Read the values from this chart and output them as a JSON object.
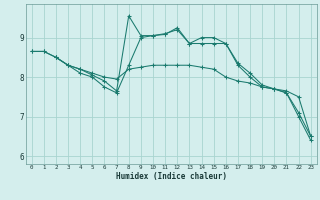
{
  "xlabel": "Humidex (Indice chaleur)",
  "bg_color": "#d4eeed",
  "grid_color": "#a8d4d0",
  "line_color": "#1a7a6e",
  "xlim": [
    -0.5,
    23.5
  ],
  "ylim": [
    5.8,
    9.85
  ],
  "yticks": [
    6,
    7,
    8,
    9
  ],
  "xticks": [
    0,
    1,
    2,
    3,
    4,
    5,
    6,
    7,
    8,
    9,
    10,
    11,
    12,
    13,
    14,
    15,
    16,
    17,
    18,
    19,
    20,
    21,
    22,
    23
  ],
  "series": [
    {
      "x": [
        0,
        1,
        2,
        3,
        4,
        5,
        6,
        7,
        8,
        9,
        10,
        11,
        12,
        13,
        14,
        15,
        16,
        17,
        18,
        19,
        20,
        21,
        22,
        23
      ],
      "y": [
        8.65,
        8.65,
        8.5,
        8.3,
        8.2,
        8.1,
        8.0,
        7.95,
        8.2,
        8.25,
        8.3,
        8.3,
        8.3,
        8.3,
        8.25,
        8.2,
        8.0,
        7.9,
        7.85,
        7.75,
        7.7,
        7.65,
        7.5,
        6.5
      ]
    },
    {
      "x": [
        0,
        1,
        2,
        3,
        4,
        5,
        6,
        7,
        8,
        9,
        10,
        11,
        12,
        13,
        14,
        15,
        16,
        17,
        18,
        19,
        20,
        21,
        22,
        23
      ],
      "y": [
        8.65,
        8.65,
        8.5,
        8.3,
        8.1,
        8.0,
        7.75,
        7.6,
        8.3,
        9.0,
        9.05,
        9.1,
        9.2,
        8.85,
        9.0,
        9.0,
        8.85,
        8.35,
        8.1,
        7.8,
        7.7,
        7.6,
        7.1,
        6.5
      ]
    },
    {
      "x": [
        2,
        3,
        4,
        5,
        6,
        7,
        8,
        9,
        10,
        11,
        12,
        13,
        14,
        15,
        16,
        17,
        18,
        19,
        20,
        21,
        22,
        23
      ],
      "y": [
        8.5,
        8.3,
        8.2,
        8.05,
        7.9,
        7.65,
        9.55,
        9.05,
        9.05,
        9.08,
        9.25,
        8.85,
        8.85,
        8.85,
        8.85,
        8.3,
        8.0,
        7.75,
        7.7,
        7.6,
        7.0,
        6.4
      ]
    }
  ]
}
